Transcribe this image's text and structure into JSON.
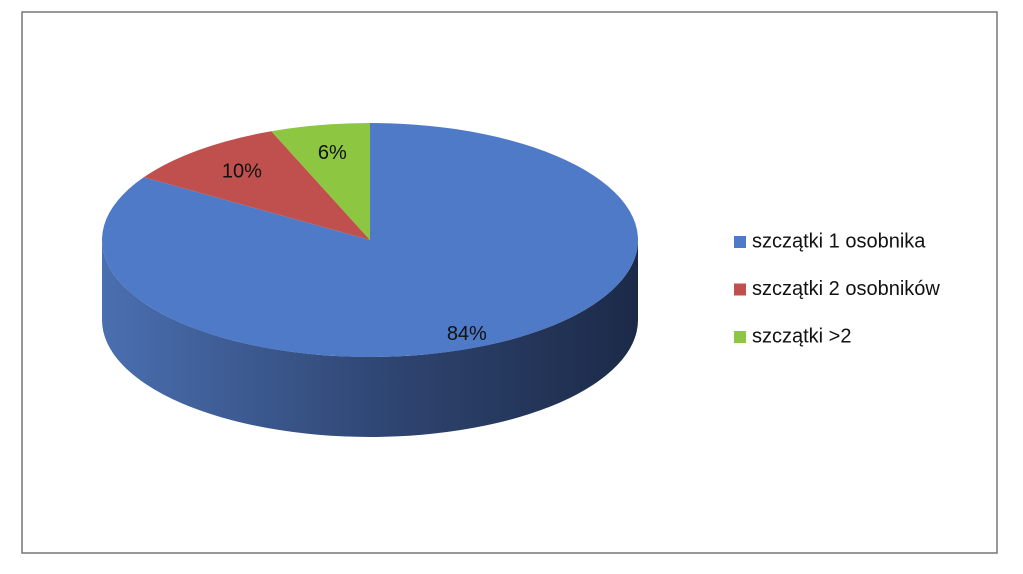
{
  "chart_data": {
    "type": "pie",
    "categories": [
      "szczątki 1 osobnika",
      "szczątki 2 osobników",
      "szczątki >2"
    ],
    "values": [
      84,
      10,
      6
    ],
    "value_labels": [
      "84%",
      "10%",
      "6%"
    ],
    "colors": [
      "#4f7ac7",
      "#c0504d",
      "#8dc641"
    ],
    "legend": "right"
  }
}
